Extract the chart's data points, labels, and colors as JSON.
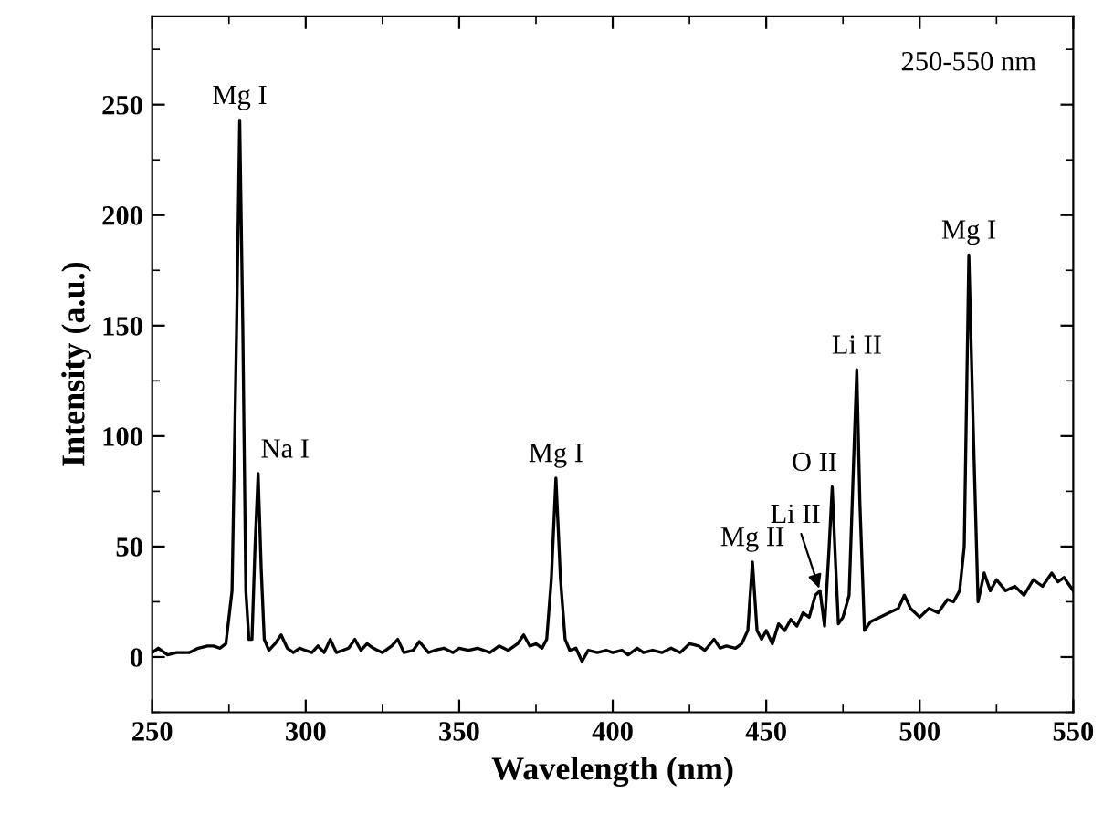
{
  "chart_data": {
    "type": "line",
    "xlabel": "Wavelength (nm)",
    "ylabel": "Intensity (a.u.)",
    "xlim": [
      250,
      550
    ],
    "ylim": [
      -25,
      290
    ],
    "xticks": [
      250,
      {
        "value": 275,
        "label": null
      },
      300,
      {
        "value": 325,
        "label": null
      },
      350,
      {
        "value": 375,
        "label": null
      },
      400,
      {
        "value": 425,
        "label": null
      },
      450,
      {
        "value": 475,
        "label": null
      },
      500,
      {
        "value": 525,
        "label": null
      },
      550
    ],
    "yticks": [
      {
        "value": -25,
        "label": null
      },
      0,
      {
        "value": 25,
        "label": null
      },
      50,
      {
        "value": 75,
        "label": null
      },
      100,
      {
        "value": 125,
        "label": null
      },
      150,
      {
        "value": 175,
        "label": null
      },
      200,
      {
        "value": 225,
        "label": null
      },
      250,
      {
        "value": 275,
        "label": null
      }
    ],
    "grid": false,
    "marker": "none",
    "line_style": "solid",
    "annotations": [
      "250-550 nm",
      {
        "text": "Mg I",
        "x": 278.5,
        "y": 243
      },
      {
        "text": "Na I",
        "x": 284.5,
        "y": 83
      },
      {
        "text": "Mg I",
        "x": 381.5,
        "y": 81
      },
      {
        "text": "Mg II",
        "x": 445.5,
        "y": 43
      },
      {
        "text": "Li II",
        "x": 467.5,
        "y": 30
      },
      {
        "text": "O II",
        "x": 471.5,
        "y": 77
      },
      {
        "text": "Li II",
        "x": 479.5,
        "y": 130
      },
      {
        "text": "Mg I",
        "x": 516,
        "y": 182
      }
    ],
    "series": [
      {
        "color": "#000000",
        "x": [
          250,
          252,
          255,
          258,
          262,
          265,
          268,
          270,
          272,
          274,
          276,
          277.5,
          278.5,
          279.5,
          280.5,
          281.5,
          282.5,
          283.5,
          284.5,
          285.5,
          286.5,
          288,
          290,
          292,
          294,
          296,
          298,
          300,
          302,
          304,
          306,
          308,
          310,
          312,
          314,
          316,
          318,
          320,
          322,
          325,
          328,
          330,
          332,
          335,
          337,
          340,
          342,
          345,
          348,
          350,
          353,
          356,
          360,
          363,
          366,
          369,
          371,
          373,
          375,
          377,
          378.5,
          380,
          381.5,
          383,
          384.5,
          386,
          388,
          390,
          392,
          395,
          398,
          400,
          403,
          405,
          408,
          410,
          413,
          416,
          419,
          422,
          425,
          428,
          430,
          433,
          435,
          437,
          440,
          442,
          444,
          445.5,
          447,
          448.5,
          450,
          452,
          454,
          456,
          458,
          460,
          462,
          464,
          466,
          467.5,
          469,
          470.5,
          471.5,
          472.5,
          473.5,
          475,
          477,
          478.5,
          479.5,
          480.5,
          482,
          484,
          487,
          490,
          493,
          495,
          497,
          500,
          503,
          506,
          509,
          511,
          513,
          514.5,
          516,
          517.5,
          519,
          521,
          523,
          525,
          528,
          531,
          534,
          537,
          540,
          543,
          545,
          547,
          550
        ],
        "values": [
          2,
          4,
          1,
          2,
          2,
          4,
          5,
          5,
          4,
          6,
          30,
          150,
          243,
          150,
          30,
          8,
          8,
          50,
          83,
          40,
          8,
          3,
          6,
          10,
          4,
          2,
          4,
          3,
          2,
          5,
          2,
          8,
          2,
          3,
          4,
          8,
          3,
          6,
          4,
          2,
          5,
          8,
          2,
          3,
          7,
          2,
          3,
          4,
          2,
          4,
          3,
          4,
          2,
          5,
          3,
          6,
          10,
          5,
          6,
          4,
          8,
          35,
          81,
          35,
          8,
          3,
          4,
          -2,
          3,
          2,
          3,
          2,
          3,
          1,
          4,
          2,
          3,
          2,
          4,
          2,
          6,
          5,
          3,
          8,
          4,
          5,
          4,
          6,
          12,
          43,
          12,
          8,
          12,
          6,
          15,
          12,
          17,
          14,
          20,
          18,
          28,
          30,
          14,
          50,
          77,
          45,
          15,
          18,
          28,
          90,
          130,
          70,
          12,
          16,
          18,
          20,
          22,
          28,
          22,
          18,
          22,
          20,
          26,
          25,
          30,
          50,
          182,
          100,
          25,
          38,
          30,
          35,
          30,
          32,
          28,
          35,
          32,
          38,
          34,
          36,
          30
        ]
      }
    ]
  }
}
